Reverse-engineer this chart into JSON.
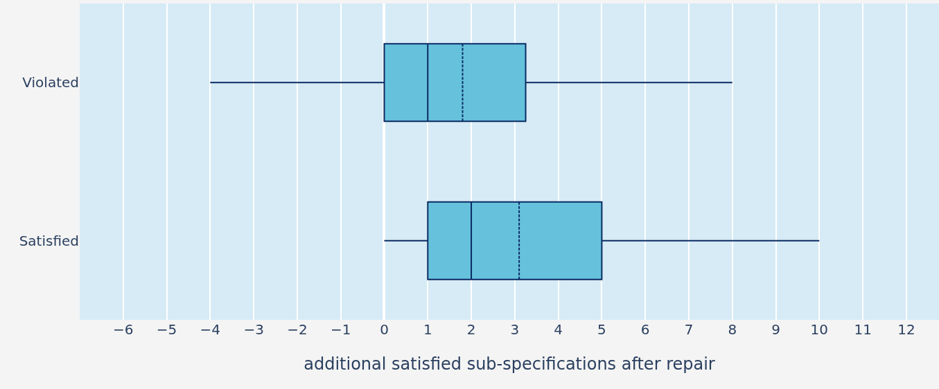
{
  "chart_data": {
    "type": "box",
    "orientation": "horizontal",
    "xlabel": "additional satisfied sub-specifications after repair",
    "categories": [
      "Violated",
      "Satisfied"
    ],
    "boxes": [
      {
        "low": -4,
        "q1": 0,
        "median": 1,
        "q3": 3.25,
        "high": 8,
        "mean": 1.8
      },
      {
        "low": 0,
        "q1": 1,
        "median": 2,
        "q3": 5,
        "high": 10,
        "mean": 3.1
      }
    ],
    "color": "#66c2dc",
    "xlim": [
      -7,
      12.75
    ],
    "xticks": [
      {
        "value": -6,
        "label": "−6"
      },
      {
        "value": -5,
        "label": "−5"
      },
      {
        "value": -4,
        "label": "−4"
      },
      {
        "value": -3,
        "label": "−3"
      },
      {
        "value": -2,
        "label": "−2"
      },
      {
        "value": -1,
        "label": "−1"
      },
      0,
      1,
      2,
      3,
      4,
      5,
      6,
      7,
      8,
      9,
      10,
      11,
      12
    ],
    "grid": "x"
  }
}
